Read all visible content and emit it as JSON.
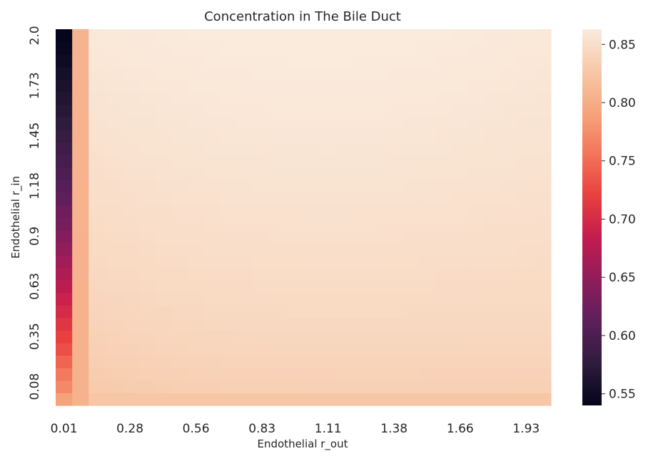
{
  "chart_data": {
    "type": "heatmap",
    "title": "Concentration in The Bile Duct",
    "xlabel": "Endothelial r_out",
    "ylabel": "Endothelial r_in",
    "x_tick_labels": [
      "0.01",
      "0.28",
      "0.56",
      "0.83",
      "1.11",
      "1.38",
      "1.66",
      "1.93"
    ],
    "y_tick_labels": [
      "2.0",
      "1.73",
      "1.45",
      "1.18",
      "0.9",
      "0.63",
      "0.35",
      "0.08"
    ],
    "x_range": [
      0.01,
      2.0
    ],
    "y_range": [
      0.01,
      2.0
    ],
    "n_cols": 30,
    "n_rows": 30,
    "colormap": "rocket",
    "colorbar": {
      "min": 0.54,
      "max": 0.863,
      "tick_values": [
        0.55,
        0.6,
        0.65,
        0.7,
        0.75,
        0.8,
        0.85
      ],
      "tick_labels": [
        "0.55",
        "0.60",
        "0.65",
        "0.70",
        "0.75",
        "0.80",
        "0.85"
      ]
    },
    "first_column_values_bottom_to_top": [
      0.79,
      0.77,
      0.76,
      0.745,
      0.73,
      0.72,
      0.71,
      0.7,
      0.69,
      0.68,
      0.67,
      0.66,
      0.65,
      0.64,
      0.63,
      0.625,
      0.615,
      0.608,
      0.6,
      0.595,
      0.588,
      0.582,
      0.576,
      0.57,
      0.565,
      0.56,
      0.555,
      0.55,
      0.545,
      0.542
    ],
    "second_column_value": 0.805,
    "bottom_row_value": 0.825,
    "top_right_value": 0.86,
    "colors": [
      "#03051a",
      "#2e1c3d",
      "#5c1f5b",
      "#8e1d5b",
      "#c21c4f",
      "#e83f3f",
      "#f3745a",
      "#f6a47c",
      "#f7c8a8",
      "#faebdd"
    ]
  }
}
